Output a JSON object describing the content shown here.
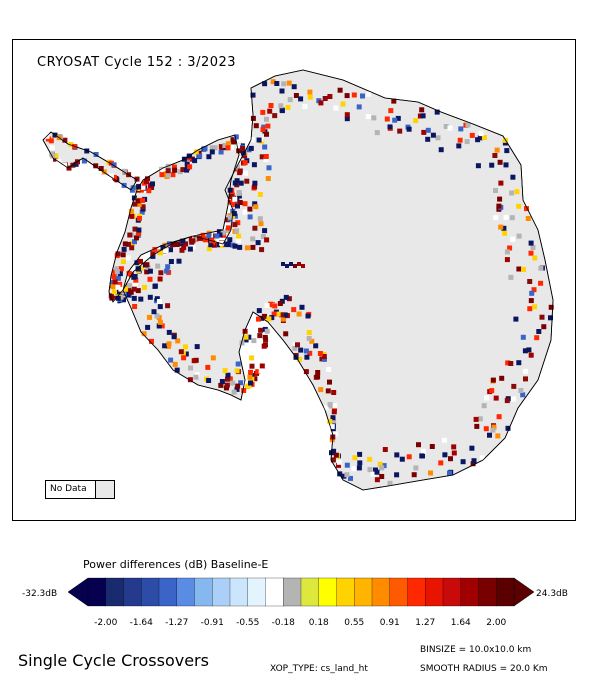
{
  "map": {
    "title": "CRYOSAT Cycle 152 : 3/2023",
    "no_data_label": "No Data",
    "land_color": "#e8e8e8"
  },
  "colorbar": {
    "title": "Power differences (dB) Baseline-E",
    "min_label": "-32.3dB",
    "max_label": "24.3dB",
    "ticks": [
      "-2.00",
      "-1.64",
      "-1.27",
      "-0.91",
      "-0.55",
      "-0.18",
      "0.18",
      "0.55",
      "0.91",
      "1.27",
      "1.64",
      "2.00"
    ],
    "colors": [
      "#060050",
      "#1a2a6e",
      "#243a8c",
      "#2c4ca8",
      "#3a64c8",
      "#5a8ce4",
      "#86b8f0",
      "#aad0f8",
      "#cbe6fc",
      "#e4f4ff",
      "#ffffff",
      "#b4b4b4",
      "#dce83c",
      "#ffff00",
      "#ffd200",
      "#ffb400",
      "#ff8c00",
      "#ff5a00",
      "#ff2800",
      "#e61400",
      "#c80a0a",
      "#a00000",
      "#780000",
      "#5a0000"
    ]
  },
  "footer": {
    "title": "Single Cycle Crossovers",
    "xop_type": "XOP_TYPE: cs_land_ht",
    "binsize": "BINSIZE = 10.0x10.0 km",
    "smooth_radius": "SMOOTH RADIUS =  20.0 Km"
  }
}
